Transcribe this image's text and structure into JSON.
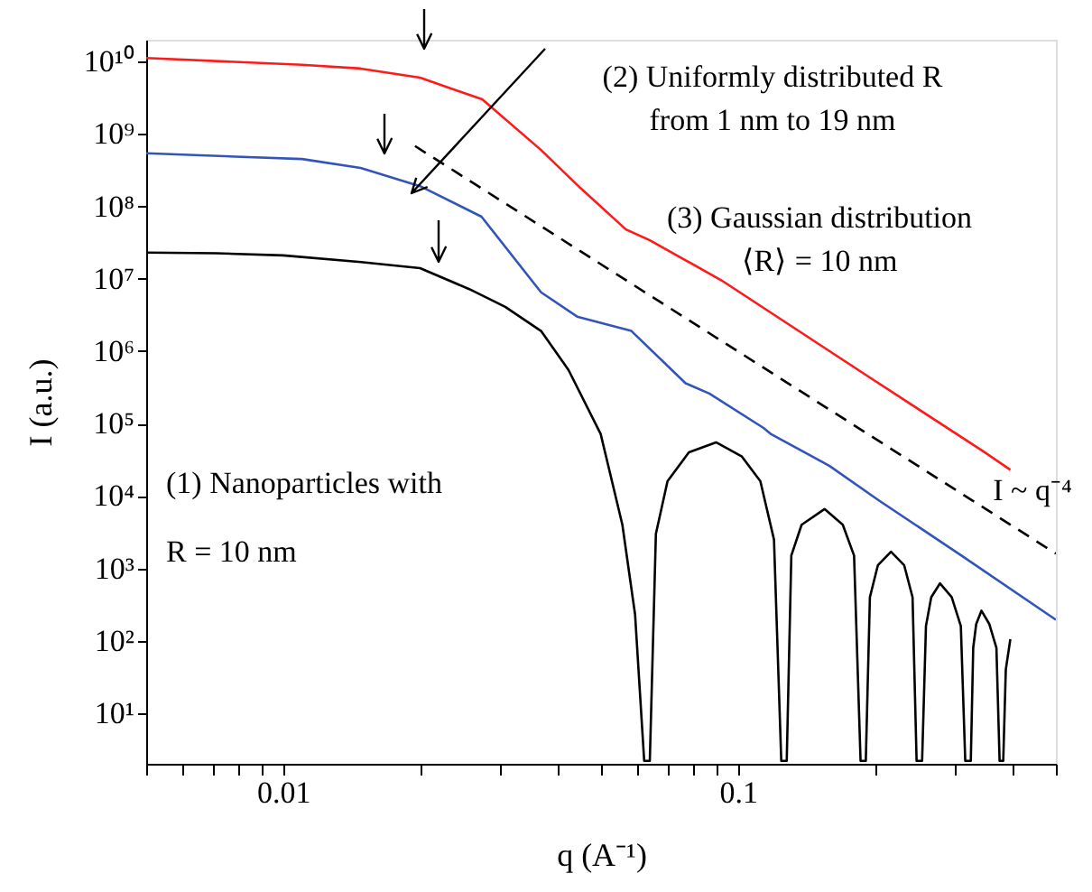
{
  "chart_data": {
    "type": "line",
    "xlabel": "q (A⁻¹)",
    "ylabel": "I (a.u.)",
    "log": "xy",
    "grid": false,
    "marker": "none",
    "xlim": [
      0.005,
      0.5
    ],
    "ylim": [
      2,
      20000000000.0
    ],
    "xticks": [
      {
        "value": 0.005,
        "label": null
      },
      {
        "value": 0.006,
        "label": null
      },
      {
        "value": 0.007,
        "label": null
      },
      {
        "value": 0.008,
        "label": null
      },
      {
        "value": 0.009,
        "label": null
      },
      0.01,
      {
        "value": 0.02,
        "label": null
      },
      {
        "value": 0.03,
        "label": null
      },
      {
        "value": 0.04,
        "label": null
      },
      {
        "value": 0.05,
        "label": null
      },
      {
        "value": 0.06,
        "label": null
      },
      {
        "value": 0.07,
        "label": null
      },
      {
        "value": 0.08,
        "label": null
      },
      {
        "value": 0.09,
        "label": null
      },
      0.1,
      {
        "value": 0.2,
        "label": null
      },
      {
        "value": 0.3,
        "label": null
      },
      {
        "value": 0.4,
        "label": null
      },
      {
        "value": 0.5,
        "label": null
      }
    ],
    "yticks": [
      {
        "value": 10,
        "label": "10¹"
      },
      {
        "value": 100,
        "label": "10²"
      },
      {
        "value": 1000,
        "label": "10³"
      },
      {
        "value": 10000,
        "label": "10⁴"
      },
      {
        "value": 100000,
        "label": "10⁵"
      },
      {
        "value": 1000000,
        "label": "10⁶"
      },
      {
        "value": 10000000,
        "label": "10⁷"
      },
      {
        "value": 100000000,
        "label": "10⁸"
      },
      {
        "value": 1000000000,
        "label": "10⁹"
      },
      {
        "value": 10000000000,
        "label": "10¹⁰"
      }
    ],
    "series": [
      {
        "color": "#ff1a1a",
        "line_style": "solid",
        "x": [
          0.005,
          0.011,
          0.0148,
          0.02,
          0.0274,
          0.0369,
          0.045,
          0.0567,
          0.064,
          0.092,
          0.191,
          0.3467,
          0.397
        ],
        "values": [
          11200000000.0,
          9000000000.0,
          8000000000.0,
          6000000000.0,
          3000000000.0,
          600000000.0,
          180000000.0,
          48000000.0,
          34000000.0,
          9500000.0,
          470000.0,
          41000.0,
          23000.0
        ]
      },
      {
        "color": "#3355bb",
        "line_style": "solid",
        "x": [
          0.005,
          0.011,
          0.0148,
          0.02,
          0.0273,
          0.0369,
          0.0443,
          0.0583,
          0.0767,
          0.0865,
          0.1138,
          0.118,
          0.159,
          0.204,
          0.31,
          0.5
        ],
        "values": [
          540000000.0,
          450000000.0,
          340000000.0,
          190000000.0,
          72000000.0,
          6500000.0,
          3000000.0,
          1900000.0,
          360000.0,
          260000.0,
          87000.0,
          72000.0,
          26000.0,
          8700.0,
          1500.0,
          195.0
        ]
      },
      {
        "color": "#000000",
        "line_style": "solid",
        "x": [
          0.005,
          0.00713,
          0.01,
          0.01483,
          0.02,
          0.02565,
          0.03078,
          0.0369,
          0.0424,
          0.0499,
          0.0557,
          0.0594,
          0.0622,
          0.064,
          0.066,
          0.07,
          0.078,
          0.0895,
          0.102,
          0.112,
          0.12,
          0.1245,
          0.128,
          0.131,
          0.138,
          0.155,
          0.17,
          0.18,
          0.186,
          0.191,
          0.195,
          0.203,
          0.217,
          0.232,
          0.242,
          0.247,
          0.254,
          0.259,
          0.266,
          0.278,
          0.295,
          0.309,
          0.316,
          0.325,
          0.329,
          0.334,
          0.343,
          0.357,
          0.37,
          0.376,
          0.383,
          0.388,
          0.397
        ],
        "values": [
          23000000.0,
          22500000.0,
          21000000.0,
          17000000.0,
          14000000.0,
          7200000.0,
          4100000.0,
          1900000.0,
          550000.0,
          72000.0,
          4000.0,
          230.0,
          2.2,
          2.2,
          3000.0,
          16000.0,
          40000.0,
          55000.0,
          35000.0,
          16000.0,
          2500.0,
          2.2,
          2.2,
          1500.0,
          4000.0,
          6600.0,
          4000.0,
          1500.0,
          2.2,
          2.2,
          400.0,
          1100.0,
          1700.0,
          1100.0,
          400.0,
          2.2,
          2.2,
          160.0,
          400.0,
          620.0,
          400.0,
          160.0,
          2.2,
          2.2,
          80,
          170.0,
          260.0,
          170.0,
          80,
          2.2,
          2.2,
          40,
          105.0
        ]
      },
      {
        "color": "#000000",
        "line_style": "dashed",
        "x": [
          0.0195,
          0.5
        ],
        "values": [
          680000000.0,
          1600.0
        ]
      }
    ],
    "annotations": [
      "(1) Nanoparticles with\nR = 10 nm",
      "(2) Uniformly distributed R\nfrom 1 nm to 19 nm",
      "(3) Gaussian distribution\n⟨R⟩ = 10 nm",
      "I ~ q⁻⁴"
    ]
  }
}
